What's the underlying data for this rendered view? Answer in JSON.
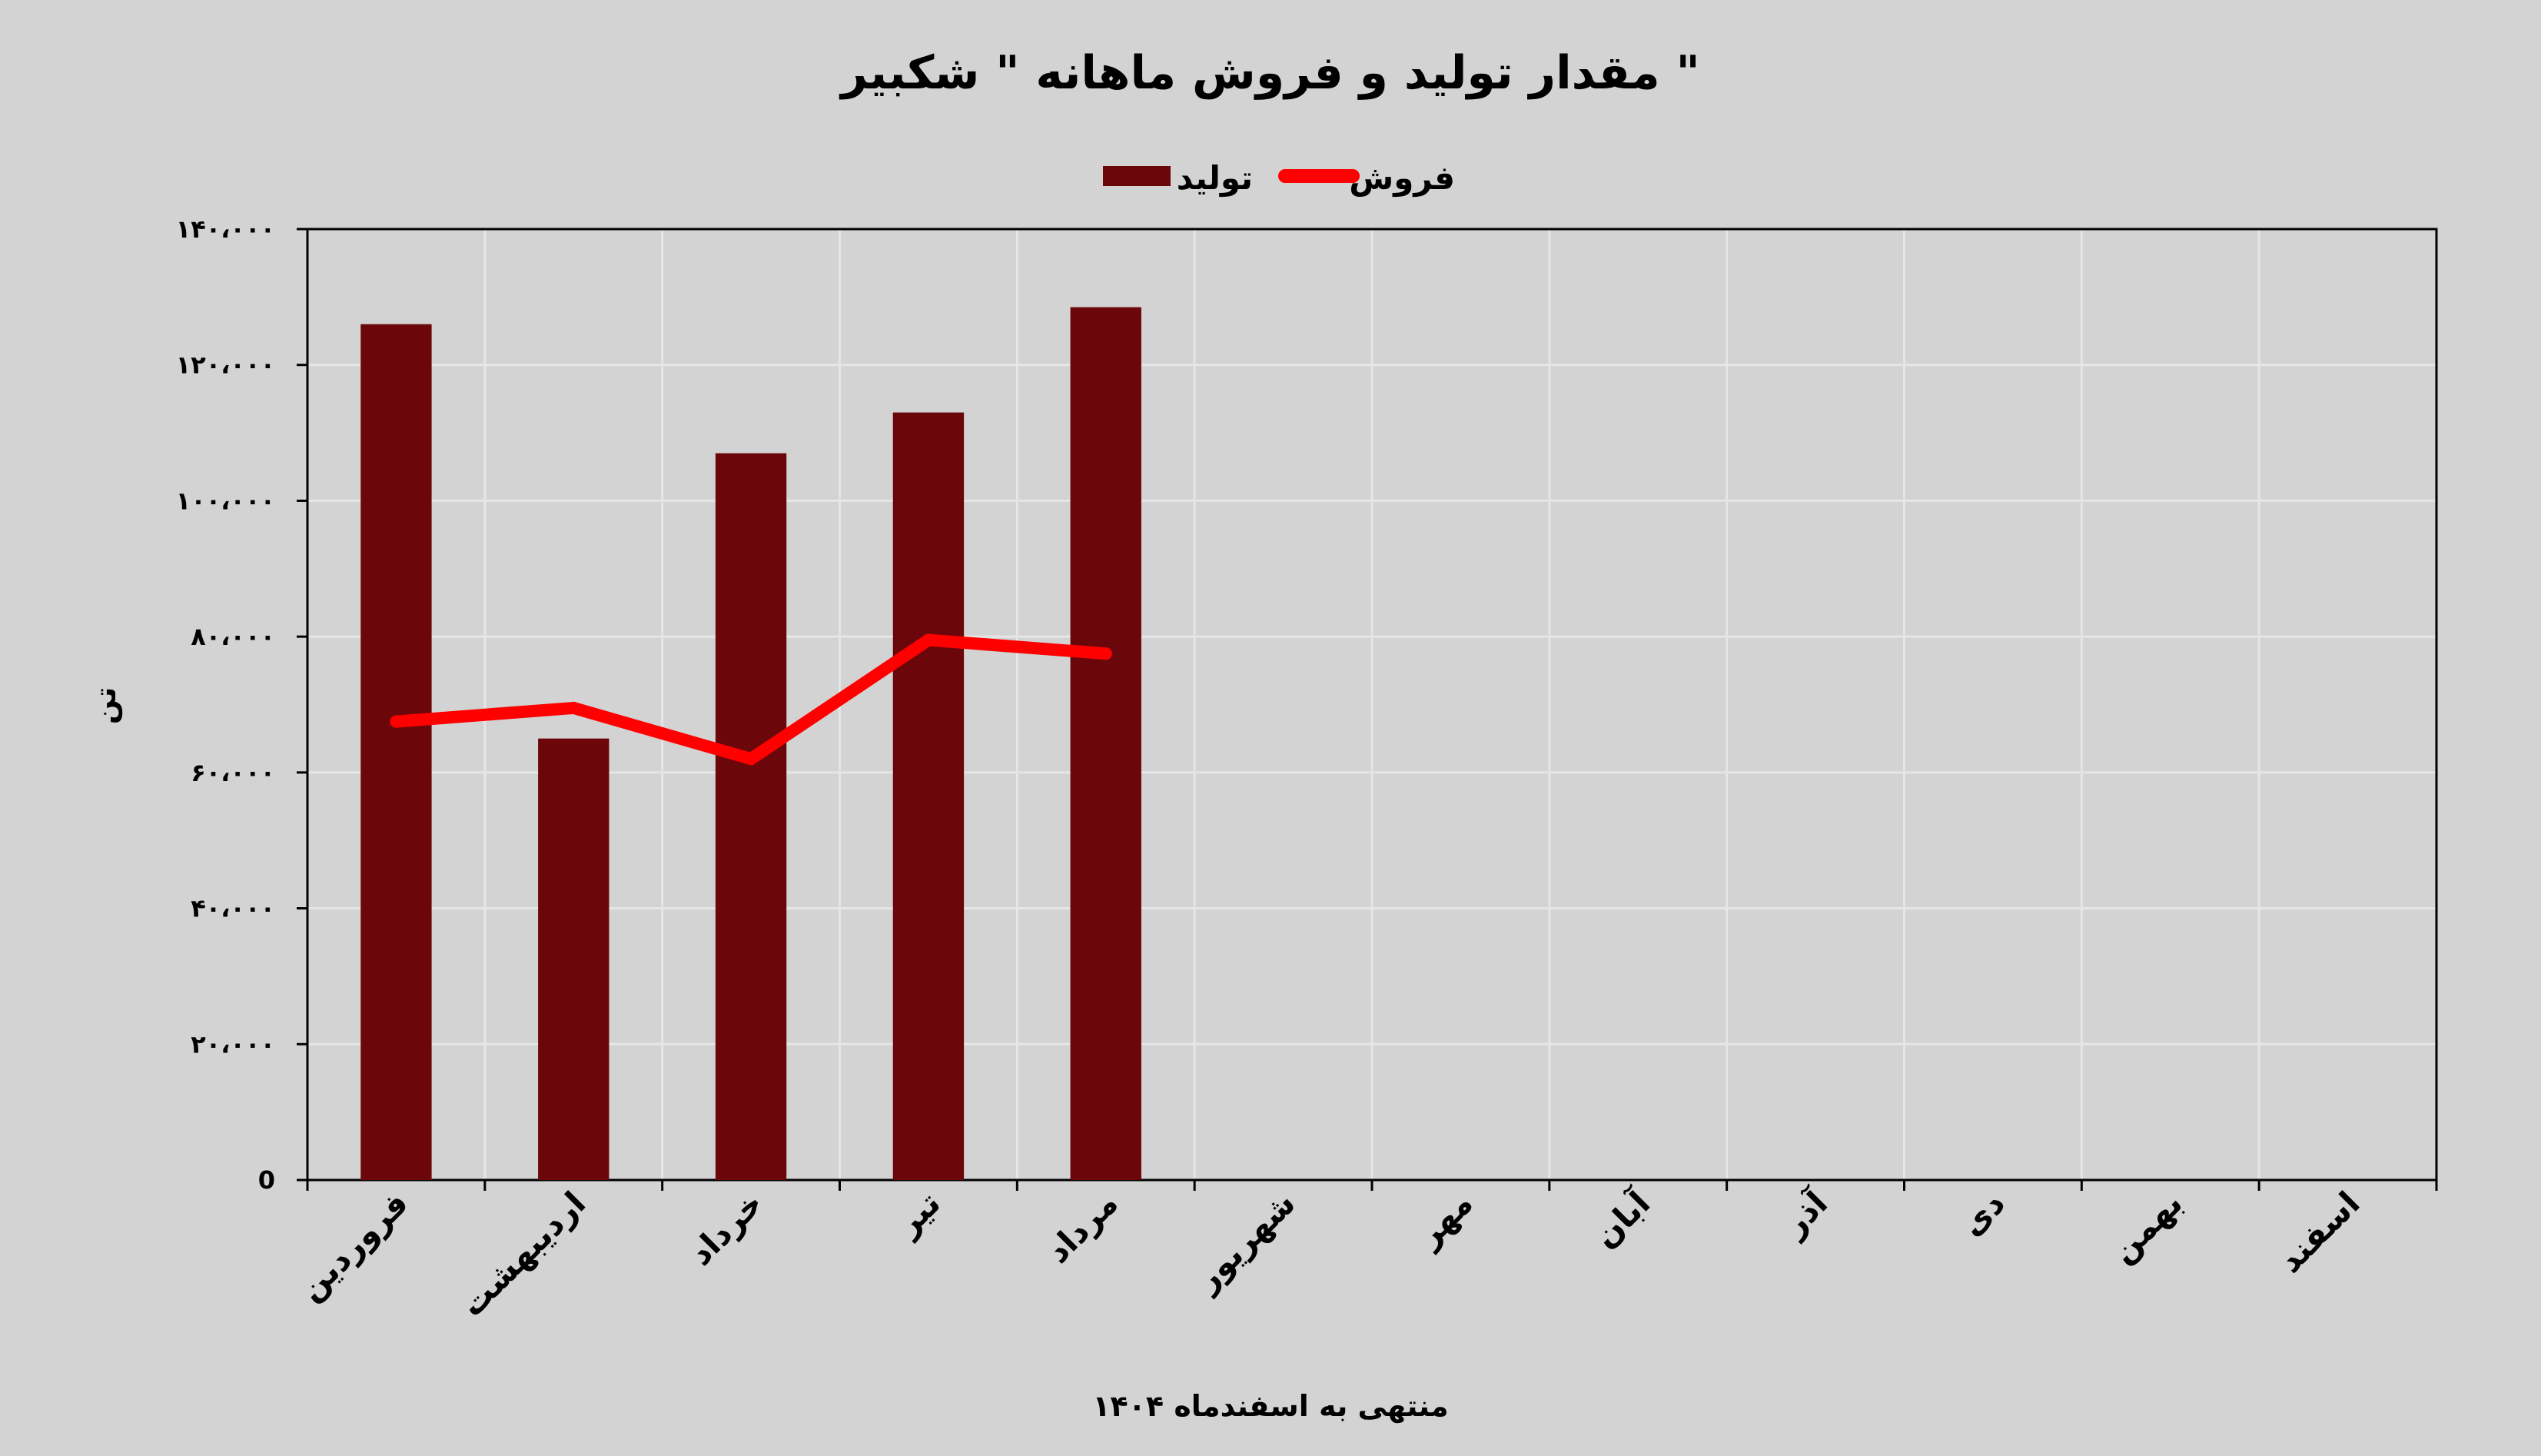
{
  "chart_data": {
    "type": "bar",
    "title": "مقدار تولید و فروش ماهانه \" شکبیر \"",
    "xlabel": "منتهی به اسفندماه ۱۴۰۴",
    "ylabel": "تن",
    "categories": [
      "فروردین",
      "اردیبهشت",
      "خرداد",
      "تیر",
      "مرداد",
      "شهریور",
      "مهر",
      "آبان",
      "آذر",
      "دی",
      "بهمن",
      "اسفند"
    ],
    "ylim": [
      0,
      140000
    ],
    "yticks": [
      0,
      20000,
      40000,
      60000,
      80000,
      100000,
      120000,
      140000
    ],
    "ytick_labels": [
      "0",
      "۲۰،۰۰۰",
      "۴۰،۰۰۰",
      "۶۰،۰۰۰",
      "۸۰،۰۰۰",
      "۱۰۰،۰۰۰",
      "۱۲۰،۰۰۰",
      "۱۴۰،۰۰۰"
    ],
    "grid": true,
    "legend": "top",
    "series": [
      {
        "name": "تولید",
        "type": "bar",
        "color": "#6b070b",
        "values": [
          126000,
          65000,
          107000,
          113000,
          128500,
          null,
          null,
          null,
          null,
          null,
          null,
          null
        ]
      },
      {
        "name": "فروش",
        "type": "line",
        "color": "#ff0000",
        "values": [
          67500,
          69500,
          62000,
          79500,
          77500,
          null,
          null,
          null,
          null,
          null,
          null,
          null
        ]
      }
    ]
  }
}
